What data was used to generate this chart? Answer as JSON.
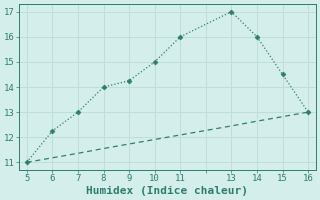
{
  "line1_x": [
    5,
    6,
    7,
    8,
    9,
    10,
    11,
    13,
    14,
    15,
    16
  ],
  "line1_y": [
    11,
    12.25,
    13,
    14,
    14.25,
    15,
    16,
    17,
    16,
    14.5,
    13
  ],
  "line2_x": [
    5,
    6,
    7,
    8,
    9,
    10,
    11,
    12,
    13,
    14,
    15,
    16
  ],
  "line2_y": [
    11,
    11.18,
    11.36,
    11.55,
    11.73,
    11.91,
    12.09,
    12.27,
    12.45,
    12.64,
    12.82,
    13
  ],
  "line_color": "#2e7d6e",
  "bg_color": "#d4eeeb",
  "grid_color": "#c0ddd9",
  "xlabel": "Humidex (Indice chaleur)",
  "xlim": [
    4.7,
    16.3
  ],
  "ylim": [
    10.7,
    17.3
  ],
  "xticks": [
    5,
    6,
    7,
    8,
    9,
    10,
    11,
    13,
    14,
    15,
    16
  ],
  "yticks": [
    11,
    12,
    13,
    14,
    15,
    16,
    17
  ],
  "tick_fontsize": 6.5,
  "xlabel_fontsize": 8.0
}
